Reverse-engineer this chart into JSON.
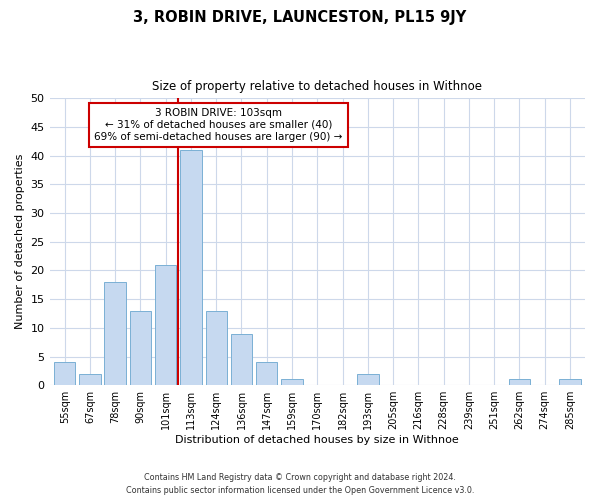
{
  "title": "3, ROBIN DRIVE, LAUNCESTON, PL15 9JY",
  "subtitle": "Size of property relative to detached houses in Withnoe",
  "xlabel": "Distribution of detached houses by size in Withnoe",
  "ylabel": "Number of detached properties",
  "bar_labels": [
    "55sqm",
    "67sqm",
    "78sqm",
    "90sqm",
    "101sqm",
    "113sqm",
    "124sqm",
    "136sqm",
    "147sqm",
    "159sqm",
    "170sqm",
    "182sqm",
    "193sqm",
    "205sqm",
    "216sqm",
    "228sqm",
    "239sqm",
    "251sqm",
    "262sqm",
    "274sqm",
    "285sqm"
  ],
  "bar_values": [
    4,
    2,
    18,
    13,
    21,
    41,
    13,
    9,
    4,
    1,
    0,
    0,
    2,
    0,
    0,
    0,
    0,
    0,
    1,
    0,
    1
  ],
  "bar_color": "#c6d9f0",
  "bar_edge_color": "#7ab0d4",
  "ylim": [
    0,
    50
  ],
  "yticks": [
    0,
    5,
    10,
    15,
    20,
    25,
    30,
    35,
    40,
    45,
    50
  ],
  "vline_index": 4,
  "vline_color": "#cc0000",
  "annotation_title": "3 ROBIN DRIVE: 103sqm",
  "annotation_line1": "← 31% of detached houses are smaller (40)",
  "annotation_line2": "69% of semi-detached houses are larger (90) →",
  "annotation_box_edge": "#cc0000",
  "footer_line1": "Contains HM Land Registry data © Crown copyright and database right 2024.",
  "footer_line2": "Contains public sector information licensed under the Open Government Licence v3.0.",
  "background_color": "#ffffff",
  "grid_color": "#cdd8ea"
}
